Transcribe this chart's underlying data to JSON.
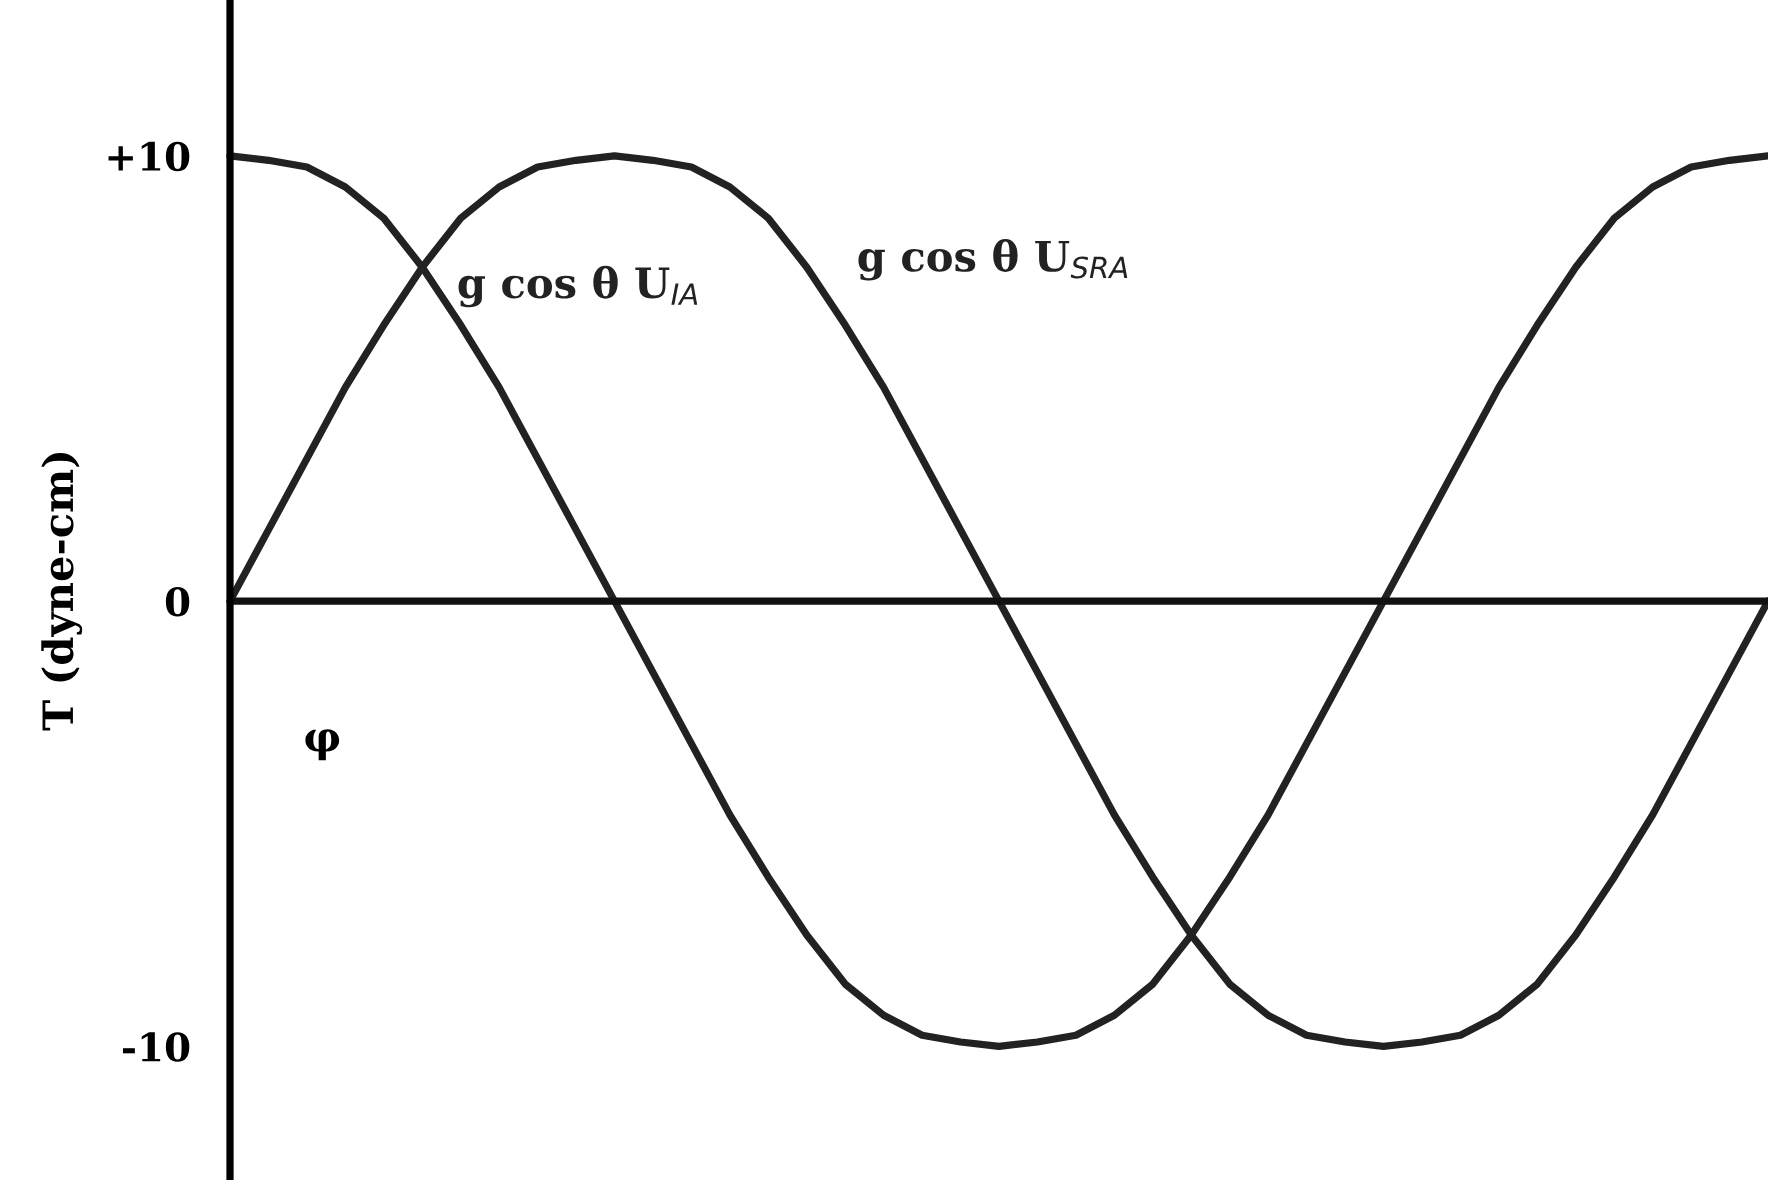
{
  "chart_data": {
    "type": "line",
    "xlabel": "φ",
    "ylabel": "T (dyne-cm)",
    "categories": [
      null,
      null,
      null,
      null,
      null,
      null,
      null,
      null,
      null,
      null,
      null,
      null,
      null,
      null,
      null,
      null,
      null,
      null,
      null,
      null,
      null,
      null,
      null,
      null,
      null,
      null,
      null,
      null,
      null,
      null,
      null,
      null,
      null,
      null,
      null,
      null,
      null,
      null,
      null,
      null,
      null
    ],
    "series": [
      {
        "name": "g cos θ U$_{IA}$",
        "color": "#222222",
        "values": [
          10,
          9.9,
          9.75,
          9.3,
          8.6,
          7.5,
          6.2,
          4.8,
          3.2,
          1.6,
          0,
          -1.6,
          -3.2,
          -4.8,
          -6.2,
          -7.5,
          -8.6,
          -9.3,
          -9.75,
          -9.9,
          -10,
          -9.9,
          -9.75,
          -9.3,
          -8.6,
          -7.5,
          -6.2,
          -4.8,
          -3.2,
          -1.6,
          0,
          1.6,
          3.2,
          4.8,
          6.2,
          7.5,
          8.6,
          9.3,
          9.75,
          9.9,
          10
        ]
      },
      {
        "name": "g cos θ U$_{SRA}$",
        "color": "#222222",
        "values": [
          0,
          1.6,
          3.2,
          4.8,
          6.2,
          7.5,
          8.6,
          9.3,
          9.75,
          9.9,
          10,
          9.9,
          9.75,
          9.3,
          8.6,
          7.5,
          6.2,
          4.8,
          3.2,
          1.6,
          0,
          -1.6,
          -3.2,
          -4.8,
          -6.2,
          -7.5,
          -8.6,
          -9.3,
          -9.75,
          -9.9,
          -10,
          -9.9,
          -9.75,
          -9.3,
          -8.6,
          -7.5,
          -6.2,
          -4.8,
          -3.2,
          -1.6,
          0
        ]
      }
    ],
    "ylim": [
      -13,
      13.5
    ],
    "yticks": [
      {
        "value": 10,
        "label": "+10"
      },
      0,
      -10
    ],
    "ref_lines": [
      {
        "axis": "y",
        "value": 0,
        "color": "#111111"
      }
    ],
    "grid": false,
    "legend": false,
    "line_style": "solid",
    "marker": "none"
  }
}
